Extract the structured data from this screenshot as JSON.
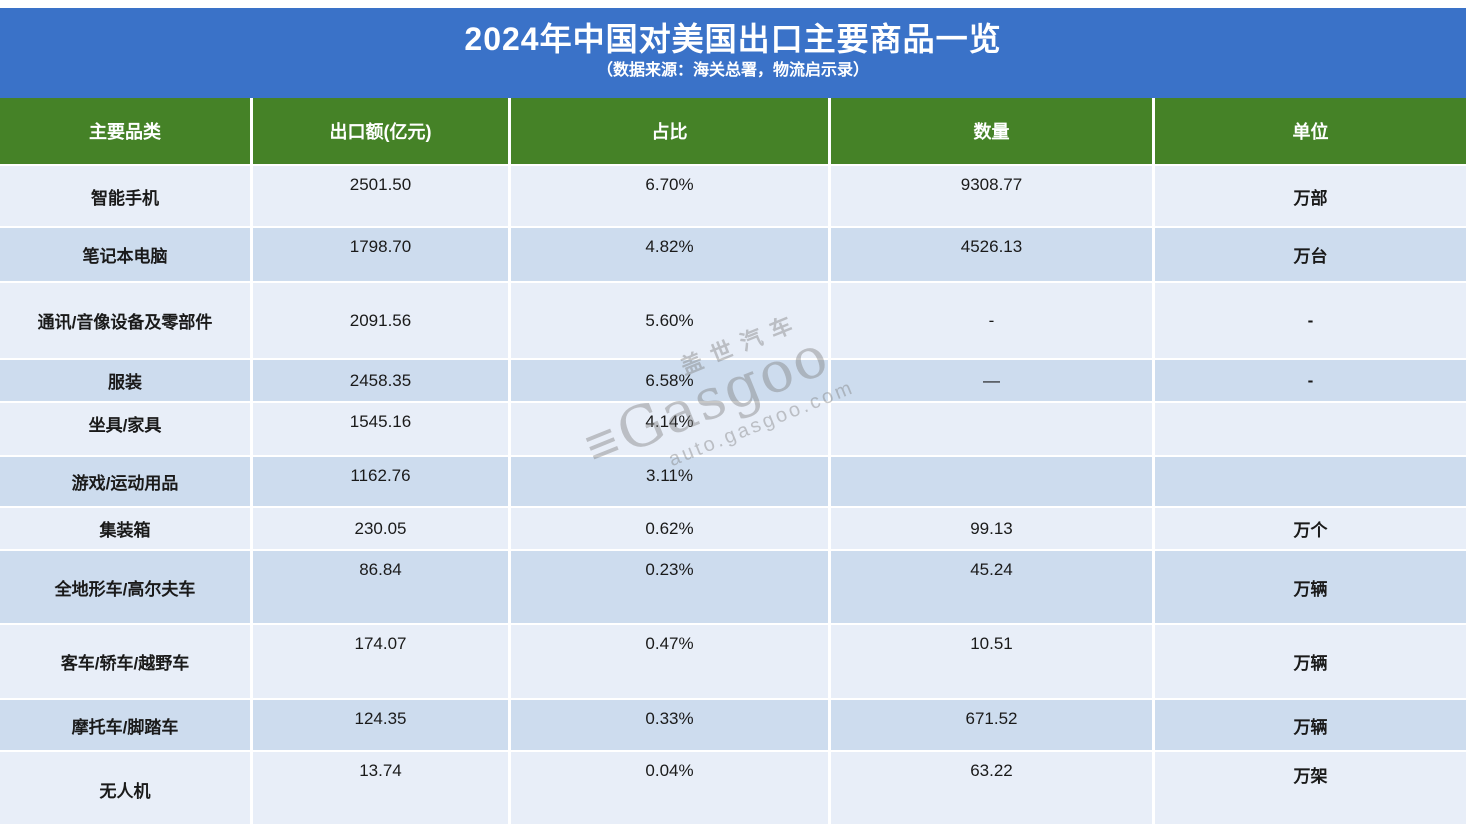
{
  "banner": {
    "title": "2024年中国对美国出口主要商品一览",
    "subtitle": "（数据来源：海关总署，物流启示录）"
  },
  "chart_data": {
    "type": "table",
    "title": "2024年中国对美国出口主要商品一览",
    "subtitle": "（数据来源：海关总署，物流启示录）",
    "columns": [
      "主要品类",
      "出口额(亿元)",
      "占比",
      "数量",
      "单位"
    ],
    "rows": [
      {
        "category": "智能手机",
        "export_value": "2501.50",
        "share": "6.70%",
        "quantity": "9308.77",
        "unit": "万部"
      },
      {
        "category": "笔记本电脑",
        "export_value": "1798.70",
        "share": "4.82%",
        "quantity": "4526.13",
        "unit": "万台"
      },
      {
        "category": "通讯/音像设备及零部件",
        "export_value": "2091.56",
        "share": "5.60%",
        "quantity": "-",
        "unit": "-"
      },
      {
        "category": "服装",
        "export_value": "2458.35",
        "share": "6.58%",
        "quantity": "—",
        "unit": "-"
      },
      {
        "category": "坐具/家具",
        "export_value": "1545.16",
        "share": "4.14%",
        "quantity": "",
        "unit": ""
      },
      {
        "category": "游戏/运动用品",
        "export_value": "1162.76",
        "share": "3.11%",
        "quantity": "",
        "unit": ""
      },
      {
        "category": "集装箱",
        "export_value": "230.05",
        "share": "0.62%",
        "quantity": "99.13",
        "unit": "万个"
      },
      {
        "category": "全地形车/高尔夫车",
        "export_value": "86.84",
        "share": "0.23%",
        "quantity": "45.24",
        "unit": "万辆"
      },
      {
        "category": "客车/轿车/越野车",
        "export_value": "174.07",
        "share": "0.47%",
        "quantity": "10.51",
        "unit": "万辆"
      },
      {
        "category": "摩托车/脚踏车",
        "export_value": "124.35",
        "share": "0.33%",
        "quantity": "671.52",
        "unit": "万辆"
      },
      {
        "category": "无人机",
        "export_value": "13.74",
        "share": "0.04%",
        "quantity": "63.22",
        "unit": "万架"
      }
    ]
  },
  "colors": {
    "banner_bg": "#3a72c8",
    "header_bg": "#458227",
    "row_light": "#e8eef8",
    "row_dark": "#cddcee",
    "gridline": "#ffffff",
    "text": "#1a1a1a"
  },
  "watermark": {
    "cn_name": "盖世汽车",
    "brand": "Gasgoo",
    "site": "auto.gasgoo.com"
  }
}
